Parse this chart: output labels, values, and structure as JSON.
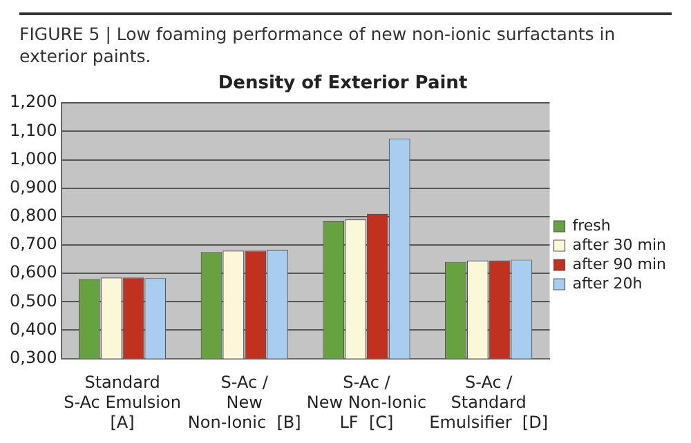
{
  "chart_data": {
    "type": "bar",
    "title": "Density of Exterior Paint",
    "annotations": [
      "FIGURE 5 | Low foaming performance of new non-ionic surfactants in exterior paints."
    ],
    "categories": [
      "Standard\nS-Ac Emulsion\n[A]",
      "S-Ac /\nNew\nNon-Ionic  [B]",
      "S-Ac /\nNew Non-Ionic\nLF  [C]",
      "S-Ac /\nStandard\nEmulsifier  [D]"
    ],
    "series": [
      {
        "name": "fresh",
        "color": "#66a23f",
        "values": [
          0.58,
          0.675,
          0.785,
          0.64
        ]
      },
      {
        "name": "after 30 min",
        "color": "#fbf8da",
        "values": [
          0.585,
          0.68,
          0.79,
          0.645
        ]
      },
      {
        "name": "after 90 min",
        "color": "#c0311f",
        "values": [
          0.585,
          0.68,
          0.81,
          0.645
        ]
      },
      {
        "name": "after 20h",
        "color": "#a9cdee",
        "values": [
          0.583,
          0.683,
          1.075,
          0.648
        ]
      }
    ],
    "ylim": [
      0.3,
      1.2
    ],
    "yticks": [
      {
        "value": 0.3,
        "label": "0,300"
      },
      {
        "value": 0.4,
        "label": "0,400"
      },
      {
        "value": 0.5,
        "label": "0,500"
      },
      {
        "value": 0.6,
        "label": "0,600"
      },
      {
        "value": 0.7,
        "label": "0,700"
      },
      {
        "value": 0.8,
        "label": "0,800"
      },
      {
        "value": 0.9,
        "label": "0,900"
      },
      {
        "value": 1.0,
        "label": "1,000"
      },
      {
        "value": 1.1,
        "label": "1,100"
      },
      {
        "value": 1.2,
        "label": "1,200"
      }
    ],
    "grid": "y",
    "legend": "right"
  }
}
